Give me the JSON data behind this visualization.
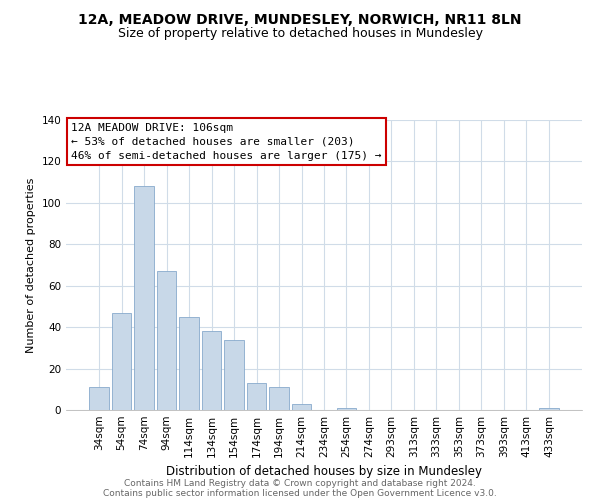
{
  "title": "12A, MEADOW DRIVE, MUNDESLEY, NORWICH, NR11 8LN",
  "subtitle": "Size of property relative to detached houses in Mundesley",
  "xlabel": "Distribution of detached houses by size in Mundesley",
  "ylabel": "Number of detached properties",
  "footer_line1": "Contains HM Land Registry data © Crown copyright and database right 2024.",
  "footer_line2": "Contains public sector information licensed under the Open Government Licence v3.0.",
  "bar_labels": [
    "34sqm",
    "54sqm",
    "74sqm",
    "94sqm",
    "114sqm",
    "134sqm",
    "154sqm",
    "174sqm",
    "194sqm",
    "214sqm",
    "234sqm",
    "254sqm",
    "274sqm",
    "293sqm",
    "313sqm",
    "333sqm",
    "353sqm",
    "373sqm",
    "393sqm",
    "413sqm",
    "433sqm"
  ],
  "bar_values": [
    11,
    47,
    108,
    67,
    45,
    38,
    34,
    13,
    11,
    3,
    0,
    1,
    0,
    0,
    0,
    0,
    0,
    0,
    0,
    0,
    1
  ],
  "bar_color": "#c8d8e8",
  "bar_edge_color": "#88aacc",
  "annotation_box_text": "12A MEADOW DRIVE: 106sqm\n← 53% of detached houses are smaller (203)\n46% of semi-detached houses are larger (175) →",
  "annotation_box_facecolor": "white",
  "annotation_box_edgecolor": "#cc0000",
  "grid_color": "#d0dce8",
  "ylim": [
    0,
    140
  ],
  "yticks": [
    0,
    20,
    40,
    60,
    80,
    100,
    120,
    140
  ],
  "background_color": "white",
  "title_fontsize": 10,
  "subtitle_fontsize": 9,
  "xlabel_fontsize": 8.5,
  "ylabel_fontsize": 8,
  "tick_fontsize": 7.5,
  "annotation_fontsize": 8,
  "footer_fontsize": 6.5
}
